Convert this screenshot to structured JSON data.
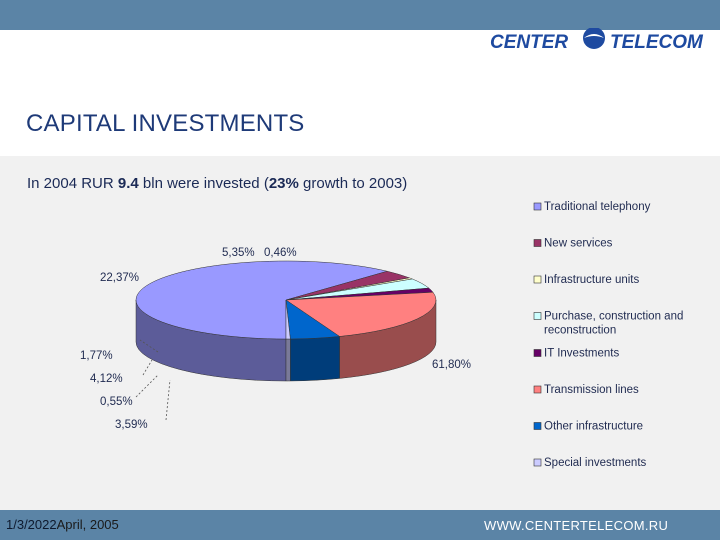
{
  "header": {
    "logo_left": "CENTER",
    "logo_right": "TELECOM"
  },
  "slide": {
    "title": "CAPITAL INVESTMENTS",
    "subtitle_pre": "In 2004 RUR ",
    "subtitle_value": "9.4",
    "subtitle_mid": " bln were invested (",
    "subtitle_growth": "23%",
    "subtitle_post": " growth to 2003)"
  },
  "footer": {
    "date_code": "1/3/2022",
    "date_text": "April, 2005",
    "url": "WWW.CENTERTELECOM.RU"
  },
  "chart_data": {
    "type": "pie",
    "title": "",
    "slices": [
      {
        "name": "Traditional telephony",
        "value": 61.8,
        "label": "61,80%",
        "color": "#9999ff"
      },
      {
        "name": "New services",
        "value": 3.59,
        "label": "3,59%",
        "color": "#993366"
      },
      {
        "name": "Infrastructure units",
        "value": 0.55,
        "label": "0,55%",
        "color": "#ffffcc"
      },
      {
        "name": "Purchase, construction and reconstruction",
        "value": 4.12,
        "label": "4,12%",
        "color": "#ccffff"
      },
      {
        "name": "IT Investments",
        "value": 1.77,
        "label": "1,77%",
        "color": "#660066"
      },
      {
        "name": "Transmission lines",
        "value": 22.37,
        "label": "22,37%",
        "color": "#ff8080"
      },
      {
        "name": "Other infrastructure",
        "value": 5.35,
        "label": "5,35%",
        "color": "#0066cc"
      },
      {
        "name": "Special investments",
        "value": 0.46,
        "label": "0,46%",
        "color": "#ccccff"
      }
    ],
    "legend_position": "right"
  }
}
